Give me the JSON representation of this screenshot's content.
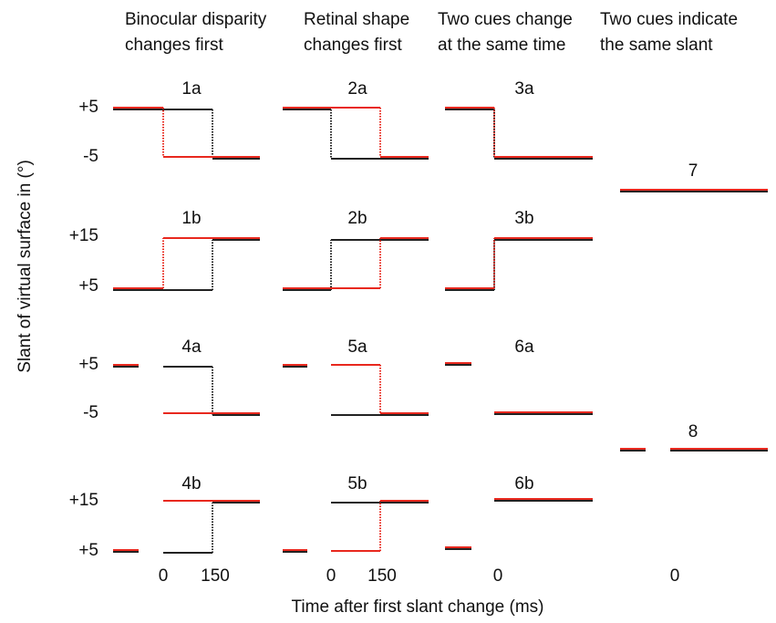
{
  "column_headers": [
    [
      "Binocular disparity",
      "changes first"
    ],
    [
      "Retinal shape",
      "changes first"
    ],
    [
      "Two cues change",
      "at the same time"
    ],
    [
      "Two cues indicate",
      "the same slant"
    ]
  ],
  "panels": [
    "1a",
    "2a",
    "3a",
    "1b",
    "2b",
    "3b",
    "4a",
    "5a",
    "6a",
    "4b",
    "5b",
    "6b",
    "7",
    "8"
  ],
  "y_labels": [
    "+5",
    "-5",
    "+15",
    "+5",
    "+5",
    "-5",
    "+15",
    "+5"
  ],
  "x_labels": [
    "0",
    "150",
    "0",
    "150",
    "0",
    "0"
  ],
  "y_axis_title": "Slant of virtual surface in (°)",
  "x_axis_title": "Time after first slant change (ms)"
}
